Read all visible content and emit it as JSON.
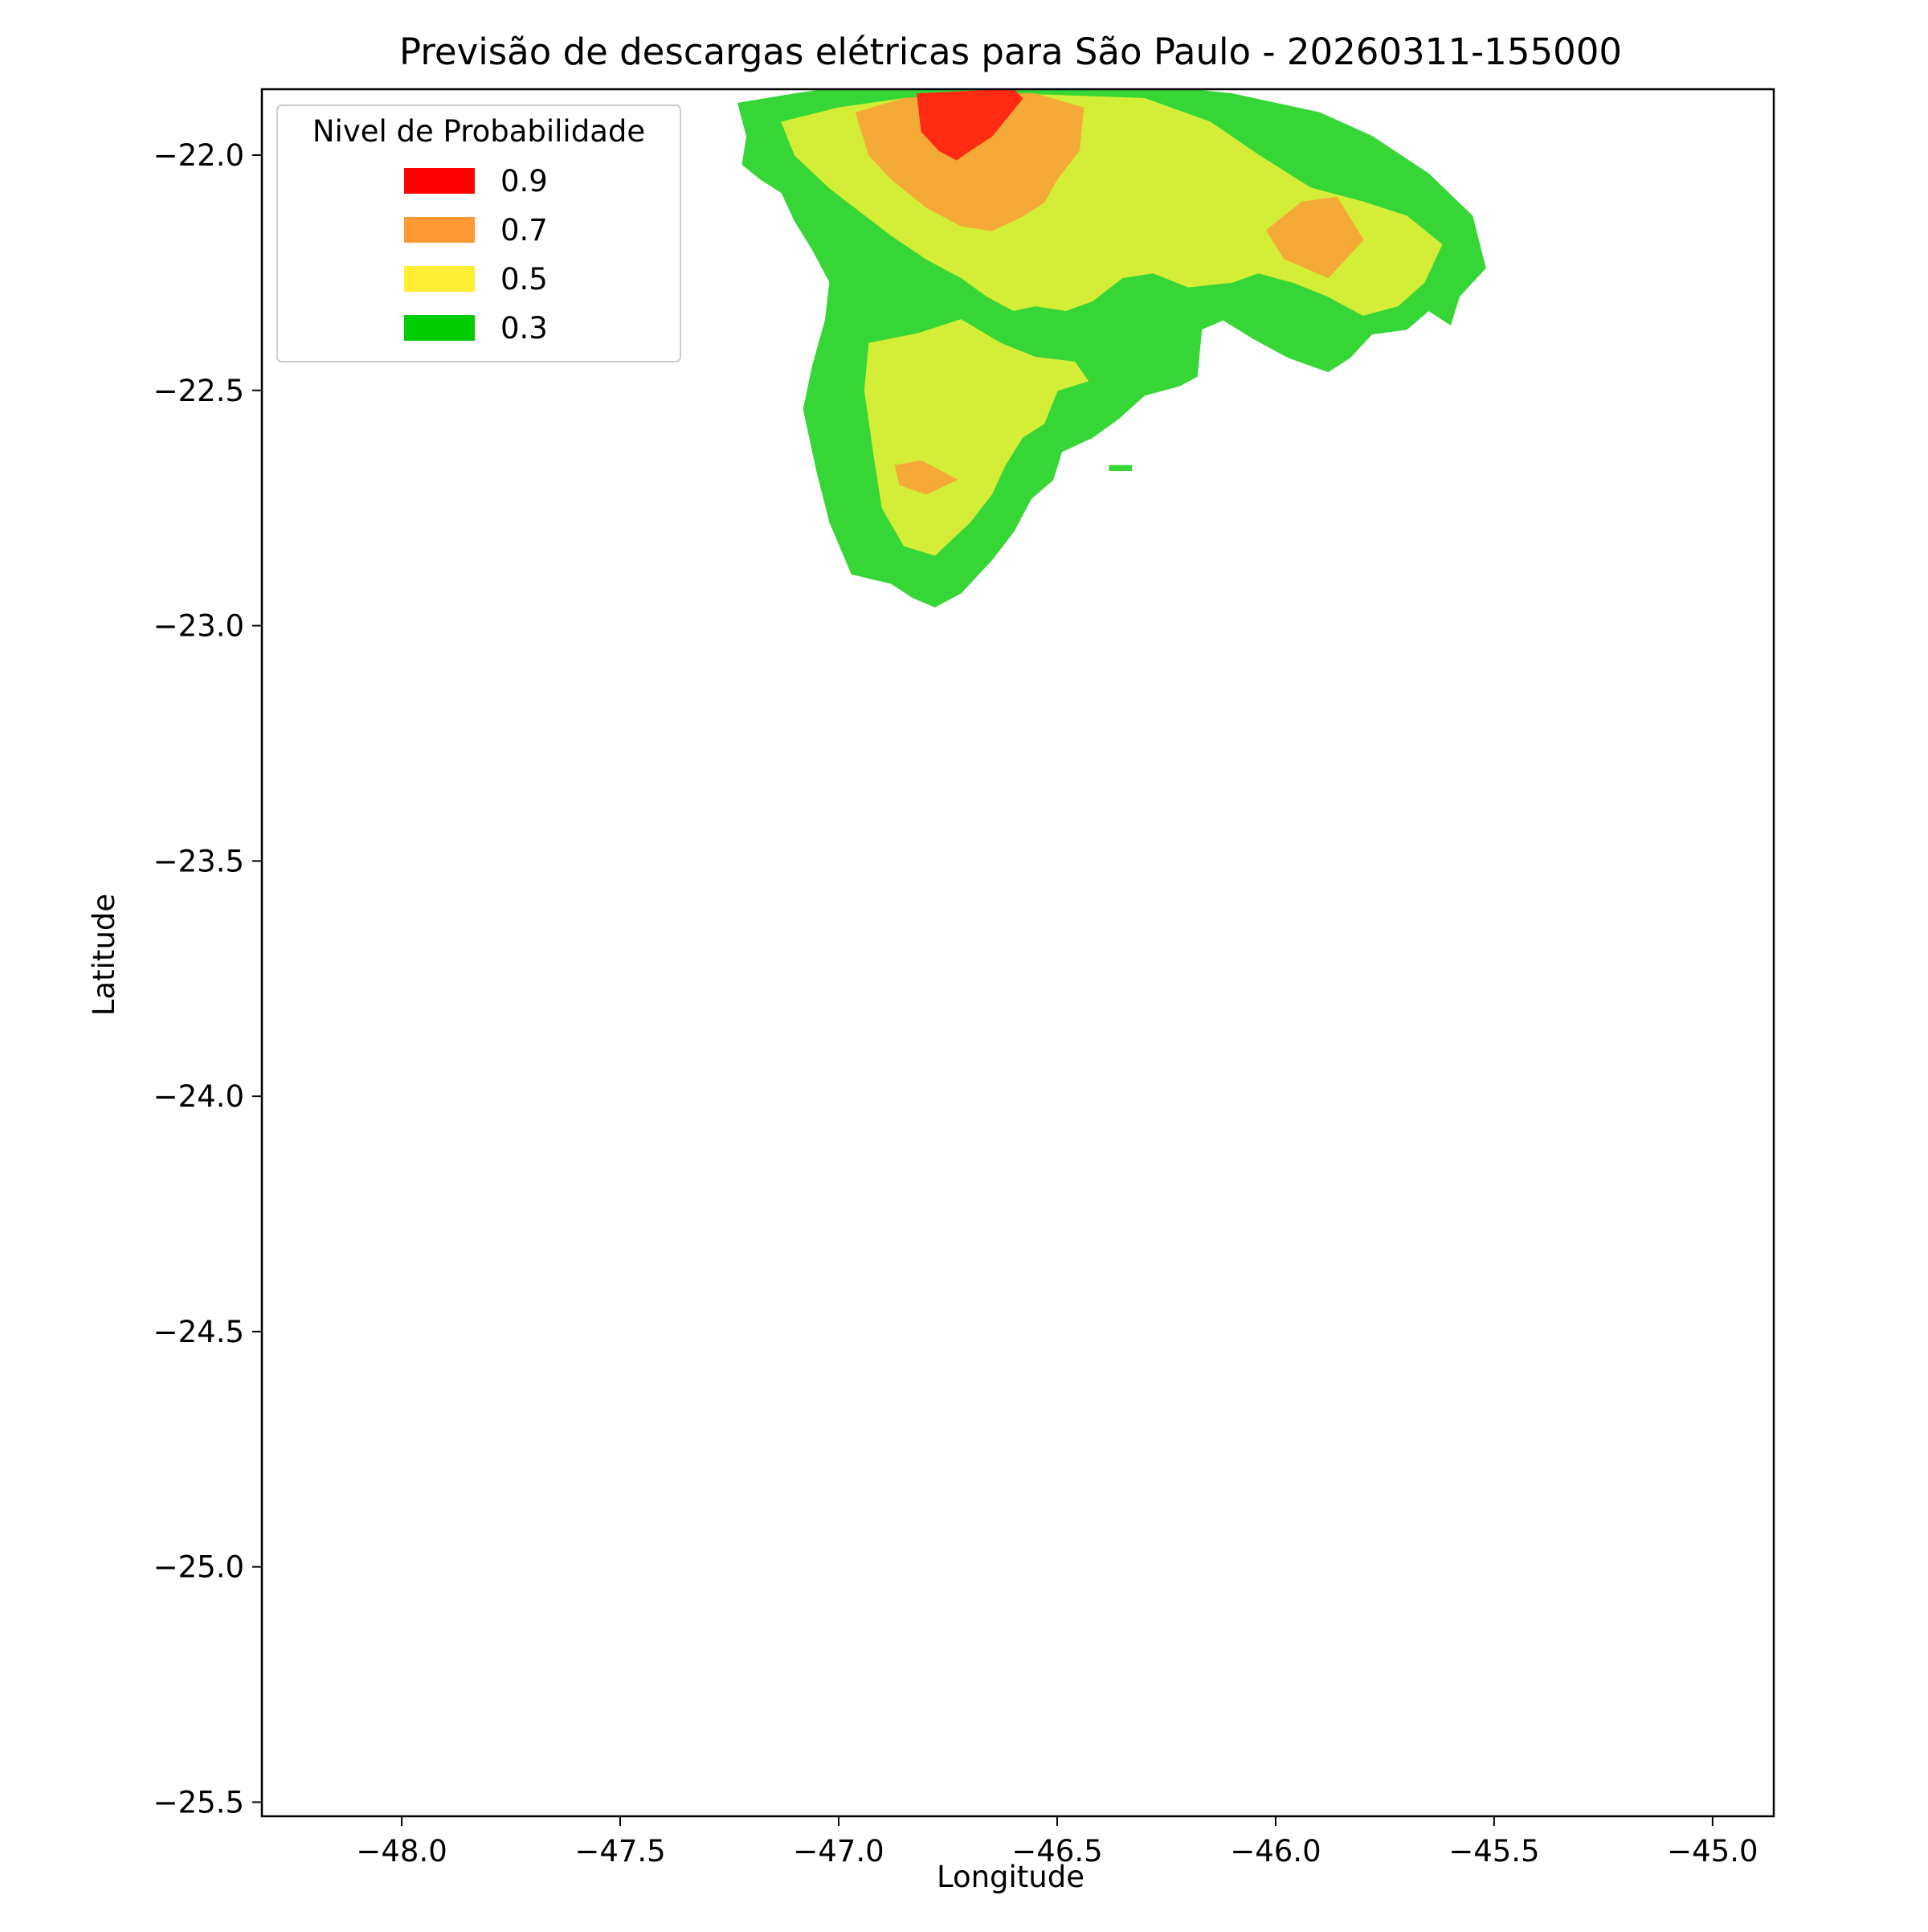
{
  "chart_data": {
    "type": "heatmap",
    "subtype": "filled-contour-map",
    "title": "Previsão de descargas elétricas para São Paulo - 20260311-155000",
    "xlabel": "Longitude",
    "ylabel": "Latitude",
    "xlim": [
      -48.32,
      -44.86
    ],
    "ylim": [
      -25.53,
      -21.86
    ],
    "x_ticks": [
      -48.0,
      -47.5,
      -47.0,
      -46.5,
      -46.0,
      -45.5,
      -45.0
    ],
    "x_tick_labels": [
      "−48.0",
      "−47.5",
      "−47.0",
      "−46.5",
      "−46.0",
      "−45.5",
      "−45.0"
    ],
    "y_ticks": [
      -22.0,
      -22.5,
      -23.0,
      -23.5,
      -24.0,
      -24.5,
      -25.0,
      -25.5
    ],
    "y_tick_labels": [
      "−22.0",
      "−22.5",
      "−23.0",
      "−23.5",
      "−24.0",
      "−24.5",
      "−25.0",
      "−25.5"
    ],
    "grid": false,
    "legend": {
      "title": "Nivel de Probabilidade",
      "placement": "upper-left",
      "entries": [
        {
          "label": "0.9",
          "color": "#ff0000"
        },
        {
          "label": "0.7",
          "color": "#ff9933"
        },
        {
          "label": "0.5",
          "color": "#ffee33"
        },
        {
          "label": "0.3",
          "color": "#00cc00"
        }
      ]
    },
    "levels": [
      {
        "level": 0.3,
        "color": "#36d636",
        "polygons": [
          [
            [
              -47.23,
              -21.89
            ],
            [
              -47.1,
              -21.87
            ],
            [
              -46.95,
              -21.85
            ],
            [
              -46.7,
              -21.84
            ],
            [
              -46.4,
              -21.84
            ],
            [
              -46.1,
              -21.87
            ],
            [
              -45.9,
              -21.91
            ],
            [
              -45.78,
              -21.96
            ],
            [
              -45.65,
              -22.04
            ],
            [
              -45.55,
              -22.13
            ],
            [
              -45.52,
              -22.24
            ],
            [
              -45.58,
              -22.3
            ],
            [
              -45.6,
              -22.36
            ],
            [
              -45.65,
              -22.33
            ],
            [
              -45.7,
              -22.37
            ],
            [
              -45.78,
              -22.38
            ],
            [
              -45.83,
              -22.43
            ],
            [
              -45.88,
              -22.46
            ],
            [
              -45.97,
              -22.43
            ],
            [
              -46.05,
              -22.39
            ],
            [
              -46.12,
              -22.35
            ],
            [
              -46.17,
              -22.37
            ],
            [
              -46.18,
              -22.47
            ],
            [
              -46.22,
              -22.49
            ],
            [
              -46.3,
              -22.51
            ],
            [
              -46.36,
              -22.56
            ],
            [
              -46.42,
              -22.6
            ],
            [
              -46.49,
              -22.63
            ],
            [
              -46.51,
              -22.69
            ],
            [
              -46.56,
              -22.73
            ],
            [
              -46.6,
              -22.8
            ],
            [
              -46.65,
              -22.86
            ],
            [
              -46.68,
              -22.89
            ],
            [
              -46.72,
              -22.93
            ],
            [
              -46.78,
              -22.96
            ],
            [
              -46.83,
              -22.94
            ],
            [
              -46.88,
              -22.91
            ],
            [
              -46.97,
              -22.89
            ],
            [
              -47.02,
              -22.78
            ],
            [
              -47.05,
              -22.67
            ],
            [
              -47.08,
              -22.54
            ],
            [
              -47.06,
              -22.45
            ],
            [
              -47.03,
              -22.35
            ],
            [
              -47.02,
              -22.27
            ],
            [
              -47.06,
              -22.2
            ],
            [
              -47.1,
              -22.14
            ],
            [
              -47.13,
              -22.08
            ],
            [
              -47.18,
              -22.05
            ],
            [
              -47.22,
              -22.02
            ],
            [
              -47.21,
              -21.96
            ]
          ],
          [
            [
              -46.38,
              -22.66
            ],
            [
              -46.33,
              -22.66
            ],
            [
              -46.33,
              -22.67
            ],
            [
              -46.38,
              -22.67
            ]
          ]
        ]
      },
      {
        "level": 0.5,
        "color": "#d4ed37",
        "polygons": [
          [
            [
              -47.13,
              -21.93
            ],
            [
              -47.0,
              -21.9
            ],
            [
              -46.85,
              -21.88
            ],
            [
              -46.6,
              -21.87
            ],
            [
              -46.3,
              -21.88
            ],
            [
              -46.15,
              -21.93
            ],
            [
              -46.04,
              -22.0
            ],
            [
              -45.92,
              -22.07
            ],
            [
              -45.8,
              -22.1
            ],
            [
              -45.7,
              -22.13
            ],
            [
              -45.62,
              -22.19
            ],
            [
              -45.66,
              -22.27
            ],
            [
              -45.72,
              -22.32
            ],
            [
              -45.8,
              -22.34
            ],
            [
              -45.88,
              -22.3
            ],
            [
              -45.96,
              -22.27
            ],
            [
              -46.04,
              -22.25
            ],
            [
              -46.1,
              -22.27
            ],
            [
              -46.2,
              -22.28
            ],
            [
              -46.28,
              -22.25
            ],
            [
              -46.35,
              -22.26
            ],
            [
              -46.42,
              -22.31
            ],
            [
              -46.48,
              -22.33
            ],
            [
              -46.55,
              -22.32
            ],
            [
              -46.6,
              -22.33
            ],
            [
              -46.66,
              -22.3
            ],
            [
              -46.72,
              -22.26
            ],
            [
              -46.8,
              -22.22
            ],
            [
              -46.88,
              -22.17
            ],
            [
              -46.95,
              -22.12
            ],
            [
              -47.02,
              -22.07
            ],
            [
              -47.1,
              -22.0
            ]
          ],
          [
            [
              -46.93,
              -22.4
            ],
            [
              -46.82,
              -22.38
            ],
            [
              -46.72,
              -22.35
            ],
            [
              -46.63,
              -22.4
            ],
            [
              -46.55,
              -22.43
            ],
            [
              -46.46,
              -22.44
            ],
            [
              -46.43,
              -22.48
            ],
            [
              -46.5,
              -22.5
            ],
            [
              -46.53,
              -22.57
            ],
            [
              -46.58,
              -22.6
            ],
            [
              -46.62,
              -22.66
            ],
            [
              -46.65,
              -22.72
            ],
            [
              -46.7,
              -22.78
            ],
            [
              -46.78,
              -22.85
            ],
            [
              -46.85,
              -22.83
            ],
            [
              -46.9,
              -22.75
            ],
            [
              -46.92,
              -22.63
            ],
            [
              -46.94,
              -22.5
            ]
          ]
        ]
      },
      {
        "level": 0.7,
        "color": "#f5a936",
        "polygons": [
          [
            [
              -46.96,
              -21.91
            ],
            [
              -46.85,
              -21.88
            ],
            [
              -46.7,
              -21.87
            ],
            [
              -46.55,
              -21.87
            ],
            [
              -46.44,
              -21.9
            ],
            [
              -46.45,
              -21.99
            ],
            [
              -46.5,
              -22.05
            ],
            [
              -46.53,
              -22.1
            ],
            [
              -46.58,
              -22.13
            ],
            [
              -46.65,
              -22.16
            ],
            [
              -46.72,
              -22.15
            ],
            [
              -46.8,
              -22.11
            ],
            [
              -46.88,
              -22.05
            ],
            [
              -46.93,
              -22.0
            ]
          ],
          [
            [
              -45.94,
              -22.1
            ],
            [
              -45.86,
              -22.09
            ],
            [
              -45.8,
              -22.18
            ],
            [
              -45.88,
              -22.26
            ],
            [
              -45.98,
              -22.22
            ],
            [
              -46.02,
              -22.16
            ]
          ],
          [
            [
              -46.87,
              -22.66
            ],
            [
              -46.81,
              -22.65
            ],
            [
              -46.73,
              -22.69
            ],
            [
              -46.8,
              -22.72
            ],
            [
              -46.86,
              -22.7
            ]
          ]
        ]
      },
      {
        "level": 0.9,
        "color": "#ff2a12",
        "polygons": [
          [
            [
              -46.82,
              -21.87
            ],
            [
              -46.6,
              -21.86
            ],
            [
              -46.58,
              -21.88
            ],
            [
              -46.65,
              -21.96
            ],
            [
              -46.7,
              -21.99
            ],
            [
              -46.73,
              -22.01
            ],
            [
              -46.77,
              -21.99
            ],
            [
              -46.81,
              -21.95
            ]
          ]
        ]
      }
    ]
  }
}
